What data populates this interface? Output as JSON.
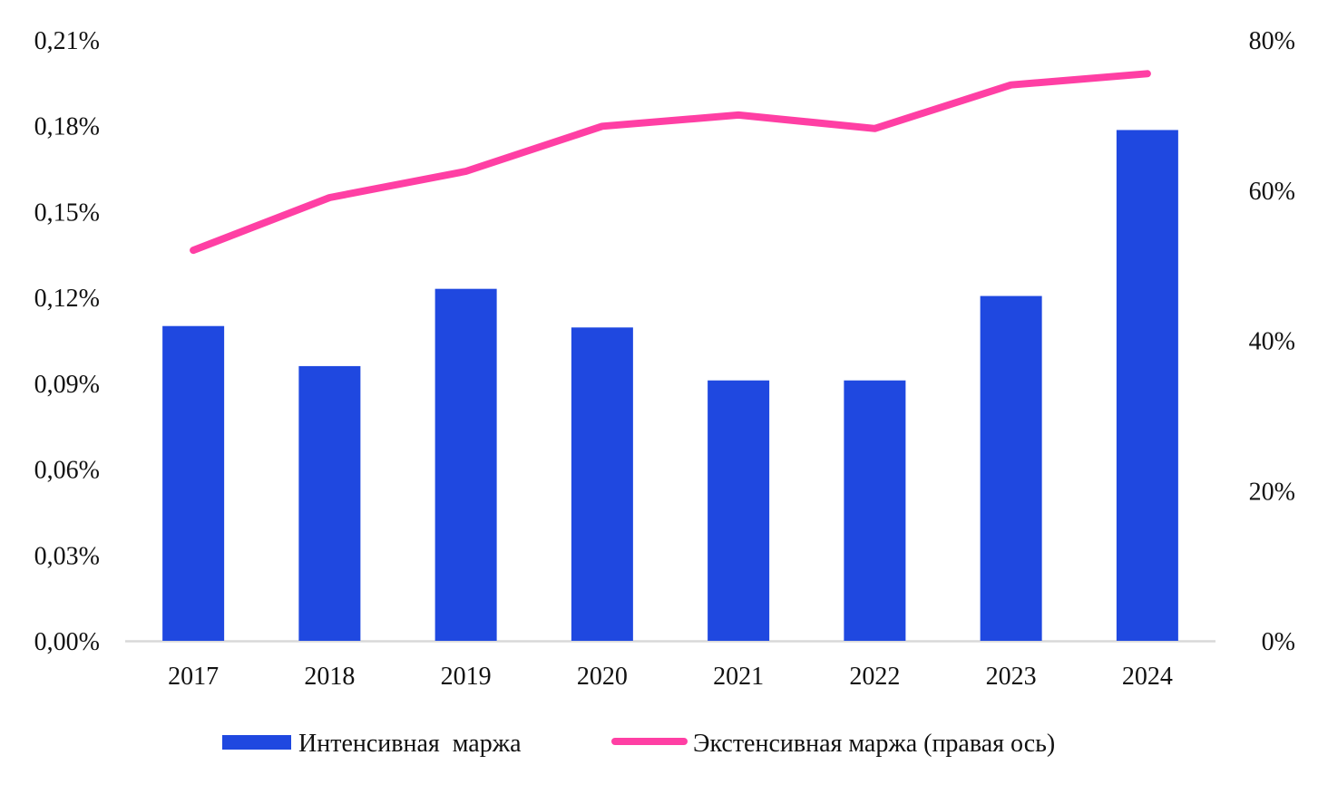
{
  "chart_data": {
    "type": "bar",
    "categories": [
      "2017",
      "2018",
      "2019",
      "2020",
      "2021",
      "2022",
      "2023",
      "2024"
    ],
    "series": [
      {
        "name": "Интенсивная  маржа",
        "type": "bar",
        "axis": "left",
        "color": "#1f48e0",
        "values": [
          0.11,
          0.096,
          0.123,
          0.1095,
          0.091,
          0.091,
          0.1205,
          0.1785
        ]
      },
      {
        "name": "Экстенсивная маржа (правая ось)",
        "type": "line",
        "axis": "right",
        "color": "#ff3fa4",
        "values": [
          52,
          59,
          62.5,
          68.5,
          70,
          68.2,
          74,
          75.5
        ]
      }
    ],
    "left_axis": {
      "ylim": [
        0,
        0.21
      ],
      "ticks": [
        "0,00%",
        "0,03%",
        "0,06%",
        "0,09%",
        "0,12%",
        "0,15%",
        "0,18%",
        "0,21%"
      ]
    },
    "right_axis": {
      "ylim": [
        0,
        80
      ],
      "ticks": [
        "0%",
        "20%",
        "40%",
        "60%",
        "80%"
      ]
    },
    "legend_position": "bottom",
    "grid": false,
    "title": "",
    "xlabel": "",
    "ylabel": ""
  }
}
